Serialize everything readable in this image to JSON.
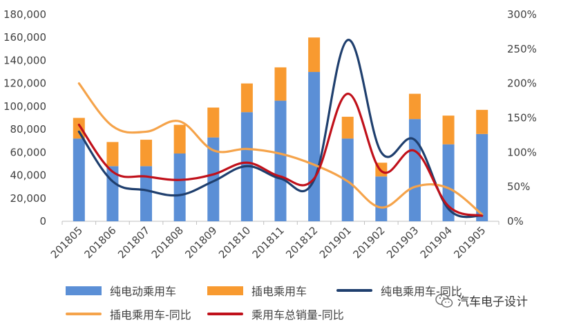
{
  "chart_data": {
    "type": "bar",
    "categories": [
      "201805",
      "201806",
      "201807",
      "201808",
      "201809",
      "201810",
      "201811",
      "201812",
      "201901",
      "201902",
      "201903",
      "201904",
      "201905"
    ],
    "y_left": {
      "ylim": [
        0,
        180000
      ],
      "ticks": [
        "0",
        "20,000",
        "40,000",
        "60,000",
        "80,000",
        "100,000",
        "120,000",
        "140,000",
        "160,000",
        "180,000"
      ]
    },
    "y_right": {
      "ylim": [
        0,
        3.0
      ],
      "ticks": [
        "0%",
        "50%",
        "100%",
        "150%",
        "200%",
        "250%",
        "300%"
      ]
    },
    "series": [
      {
        "name": "纯电动乘用车",
        "kind": "bar",
        "axis": "left",
        "color": "#5B8FD6",
        "values": [
          72000,
          48000,
          48000,
          59000,
          73000,
          95000,
          105000,
          130000,
          72000,
          39000,
          89000,
          67000,
          76000
        ]
      },
      {
        "name": "插电乘用车",
        "kind": "bar",
        "axis": "left",
        "color": "#F89A30",
        "values": [
          18000,
          21000,
          23000,
          25000,
          26000,
          25000,
          29000,
          30000,
          19000,
          12000,
          22000,
          25000,
          21000
        ]
      },
      {
        "name": "纯电乘用车-同比",
        "kind": "line",
        "axis": "right",
        "color": "#1F3F6E",
        "values": [
          1.3,
          0.58,
          0.45,
          0.38,
          0.58,
          0.8,
          0.62,
          0.6,
          2.63,
          1.0,
          1.18,
          0.18,
          0.08
        ]
      },
      {
        "name": "插电乘用车-同比",
        "kind": "line",
        "axis": "right",
        "color": "#F5A34A",
        "values": [
          2.0,
          1.38,
          1.3,
          1.45,
          1.03,
          1.05,
          0.98,
          0.82,
          0.58,
          0.2,
          0.5,
          0.48,
          0.1
        ]
      },
      {
        "name": "乘用车总销量-同比",
        "kind": "line",
        "axis": "right",
        "color": "#C0101A",
        "values": [
          1.4,
          0.72,
          0.65,
          0.6,
          0.68,
          0.85,
          0.65,
          0.62,
          1.85,
          0.73,
          1.02,
          0.22,
          0.08
        ]
      }
    ],
    "stacked": true,
    "legend_position": "bottom"
  },
  "watermark": {
    "text": "汽车电子设计"
  }
}
